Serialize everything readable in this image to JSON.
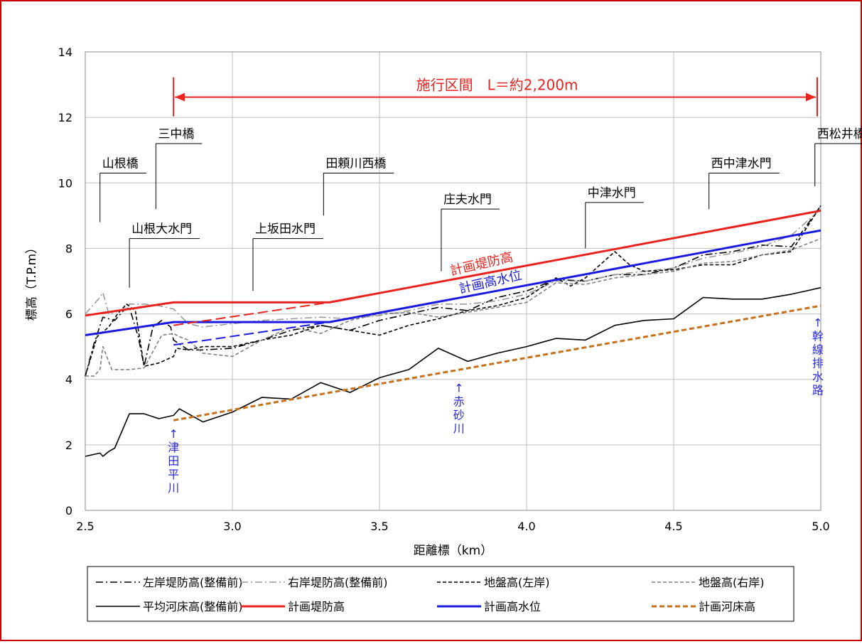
{
  "colors": {
    "frame": "#cc0000",
    "grid": "#bfbfbf",
    "planned_levee": "#e8231f",
    "planned_hwl": "#1a1adf",
    "planned_bed": "#c8701a",
    "annotation_blue": "#2a2ad8",
    "section_red": "#e8231f"
  },
  "chart_data": {
    "type": "line",
    "xlabel": "距離標（km）",
    "ylabel": "標高（T.P.m）",
    "xlim": [
      2.5,
      5.0
    ],
    "ylim": [
      0,
      14
    ],
    "x_ticks": [
      "2.5",
      "3.0",
      "3.5",
      "4.0",
      "4.5",
      "5.0"
    ],
    "y_ticks": [
      "0",
      "2",
      "4",
      "6",
      "8",
      "10",
      "12",
      "14"
    ],
    "grid": true,
    "legend_position": "bottom",
    "section": {
      "label": "施行区間　L＝約2,200m",
      "x_start": 2.8,
      "x_end": 5.0,
      "y": 12.9
    },
    "bridges": [
      {
        "label": "山根橋",
        "x": 2.55,
        "line_top": 10.3,
        "line_bottom": 8.8
      },
      {
        "label": "三中橋",
        "x": 2.74,
        "line_top": 11.2,
        "line_bottom": 9.2
      },
      {
        "label": "田頼川西橋",
        "x": 3.31,
        "line_top": 10.3,
        "line_bottom": 9.0
      },
      {
        "label": "西松井橋",
        "x": 4.98,
        "line_top": 11.2,
        "line_bottom": 9.9
      }
    ],
    "gates": [
      {
        "label": "山根大水門",
        "x": 2.65,
        "line_top": 8.3,
        "line_bottom": 6.8
      },
      {
        "label": "上坂田水門",
        "x": 3.07,
        "line_top": 8.3,
        "line_bottom": 6.7
      },
      {
        "label": "庄夫水門",
        "x": 3.71,
        "line_top": 9.2,
        "line_bottom": 7.3
      },
      {
        "label": "中津水門",
        "x": 4.2,
        "line_top": 9.4,
        "line_bottom": 8.0
      },
      {
        "label": "西中津水門",
        "x": 4.62,
        "line_top": 10.3,
        "line_bottom": 9.2
      }
    ],
    "inflows": [
      {
        "label": [
          "↑",
          "津",
          "田",
          "平",
          "川"
        ],
        "x": 2.8,
        "y_top": 2.6
      },
      {
        "label": [
          "↑",
          "赤",
          "砂",
          "川"
        ],
        "x": 3.77,
        "y_top": 4.0
      },
      {
        "label": [
          "↑",
          "幹",
          "線",
          "排",
          "水",
          "路"
        ],
        "x": 4.99,
        "y_top": 6.0
      }
    ],
    "curve_labels": [
      {
        "label": "計画堤防高",
        "x": 3.85,
        "y": 7.4,
        "angle": -13,
        "series": "計画堤防高"
      },
      {
        "label": "計画高水位",
        "x": 3.88,
        "y": 6.85,
        "angle": -13,
        "series": "計画高水位"
      }
    ],
    "series": [
      {
        "name": "左岸堤防高(整備前)",
        "color": "#000000",
        "dash": "10 4 2 4",
        "width": 1.6,
        "x": [
          2.5,
          2.53,
          2.56,
          2.6,
          2.63,
          2.65,
          2.68,
          2.7,
          2.73,
          2.76,
          2.79,
          2.8,
          2.85,
          2.9,
          3.0,
          3.1,
          3.2,
          3.3,
          3.4,
          3.5,
          3.6,
          3.7,
          3.8,
          3.9,
          4.0,
          4.1,
          4.2,
          4.3,
          4.4,
          4.5,
          4.6,
          4.7,
          4.8,
          4.9,
          5.0
        ],
        "y": [
          4.1,
          5.1,
          5.9,
          5.8,
          6.1,
          6.2,
          5.3,
          4.4,
          5.6,
          5.8,
          5.6,
          5.2,
          4.9,
          4.9,
          4.95,
          5.2,
          5.5,
          5.65,
          5.5,
          5.8,
          6.0,
          6.2,
          6.1,
          6.5,
          6.7,
          7.05,
          7.0,
          7.2,
          7.2,
          7.4,
          7.8,
          7.9,
          8.1,
          8.05,
          9.3
        ]
      },
      {
        "name": "右岸堤防高(整備前)",
        "color": "#999999",
        "dash": "10 4 2 4",
        "width": 1.6,
        "x": [
          2.5,
          2.53,
          2.55,
          2.56,
          2.58,
          2.62,
          2.65,
          2.7,
          2.75,
          2.8,
          2.85,
          2.9,
          3.0,
          3.1,
          3.2,
          3.3,
          3.4,
          3.5,
          3.6,
          3.7,
          3.8,
          3.9,
          4.0,
          4.1,
          4.2,
          4.3,
          4.4,
          4.5,
          4.6,
          4.7,
          4.8,
          4.9,
          5.0
        ],
        "y": [
          6.0,
          6.3,
          6.5,
          6.65,
          6.0,
          6.1,
          6.3,
          6.3,
          6.25,
          6.15,
          5.7,
          5.6,
          5.7,
          5.8,
          5.85,
          5.9,
          5.85,
          5.95,
          6.1,
          6.3,
          6.3,
          6.4,
          6.6,
          7.0,
          7.0,
          7.2,
          7.3,
          7.4,
          7.7,
          7.85,
          8.05,
          8.4,
          9.2
        ]
      },
      {
        "name": "地盤高(左岸)",
        "color": "#000000",
        "dash": "5 3",
        "width": 1.6,
        "x": [
          2.5,
          2.54,
          2.58,
          2.61,
          2.64,
          2.67,
          2.7,
          2.75,
          2.8,
          2.81,
          2.85,
          2.9,
          3.0,
          3.1,
          3.2,
          3.3,
          3.4,
          3.5,
          3.6,
          3.7,
          3.8,
          3.9,
          4.0,
          4.1,
          4.15,
          4.2,
          4.3,
          4.35,
          4.4,
          4.5,
          4.6,
          4.7,
          4.8,
          4.9,
          5.0
        ],
        "y": [
          4.1,
          5.3,
          5.6,
          6.0,
          6.3,
          6.1,
          4.4,
          4.5,
          4.7,
          4.95,
          4.9,
          5.0,
          5.0,
          5.2,
          5.35,
          5.65,
          5.5,
          5.35,
          5.65,
          5.85,
          6.1,
          6.25,
          6.5,
          7.1,
          6.85,
          7.1,
          7.9,
          7.5,
          7.3,
          7.35,
          7.5,
          7.5,
          7.8,
          7.9,
          9.3
        ]
      },
      {
        "name": "地盤高(右岸)",
        "color": "#808080",
        "dash": "5 3",
        "width": 1.6,
        "x": [
          2.5,
          2.53,
          2.55,
          2.56,
          2.59,
          2.65,
          2.7,
          2.76,
          2.8,
          2.82,
          2.85,
          2.9,
          3.0,
          3.1,
          3.2,
          3.3,
          3.4,
          3.5,
          3.6,
          3.7,
          3.8,
          3.9,
          4.0,
          4.1,
          4.2,
          4.3,
          4.4,
          4.5,
          4.6,
          4.7,
          4.8,
          4.9,
          5.0
        ],
        "y": [
          4.1,
          4.1,
          4.3,
          5.0,
          4.3,
          4.3,
          4.35,
          5.35,
          5.4,
          5.3,
          5.2,
          4.8,
          4.7,
          5.2,
          5.6,
          5.4,
          5.8,
          6.0,
          6.05,
          5.9,
          6.05,
          6.2,
          6.35,
          6.95,
          6.9,
          7.1,
          7.2,
          7.3,
          7.55,
          7.6,
          7.8,
          7.95,
          8.3
        ]
      },
      {
        "name": "平均河床高(整備前)",
        "color": "#000000",
        "dash": "",
        "width": 1.6,
        "x": [
          2.5,
          2.55,
          2.56,
          2.58,
          2.6,
          2.65,
          2.7,
          2.75,
          2.8,
          2.82,
          2.85,
          2.9,
          3.0,
          3.1,
          3.2,
          3.3,
          3.4,
          3.5,
          3.6,
          3.7,
          3.8,
          3.9,
          4.0,
          4.1,
          4.2,
          4.3,
          4.4,
          4.5,
          4.6,
          4.7,
          4.8,
          4.9,
          5.0
        ],
        "y": [
          1.65,
          1.75,
          1.65,
          1.8,
          1.9,
          2.95,
          2.95,
          2.8,
          2.9,
          3.1,
          2.95,
          2.7,
          3.0,
          3.45,
          3.4,
          3.9,
          3.6,
          4.05,
          4.3,
          4.95,
          4.55,
          4.8,
          5.0,
          5.25,
          5.2,
          5.65,
          5.8,
          5.85,
          6.5,
          6.45,
          6.45,
          6.6,
          6.8
        ]
      },
      {
        "name": "計画堤防高",
        "color": "#e8231f",
        "dash": "",
        "width": 3,
        "x": [
          2.5,
          2.8,
          3.33,
          5.0
        ],
        "y": [
          5.95,
          6.35,
          6.35,
          9.15
        ]
      },
      {
        "name": "計画高水位",
        "color": "#1a1adf",
        "dash": "",
        "width": 3,
        "x": [
          2.5,
          2.8,
          3.33,
          5.0
        ],
        "y": [
          5.35,
          5.75,
          5.75,
          8.55
        ]
      },
      {
        "name": "計画河床高",
        "color": "#c8701a",
        "dash": "7 4",
        "width": 3,
        "x": [
          2.8,
          5.0
        ],
        "y": [
          2.75,
          6.25
        ]
      }
    ],
    "extra_lines": [
      {
        "color": "#e8231f",
        "dash": "14 6",
        "width": 2,
        "x": [
          2.8,
          3.33
        ],
        "y": [
          5.65,
          6.35
        ]
      },
      {
        "color": "#1a1adf",
        "dash": "14 6",
        "width": 2,
        "x": [
          2.8,
          3.33
        ],
        "y": [
          5.05,
          5.75
        ]
      }
    ],
    "legend": [
      {
        "label": "左岸堤防高(整備前)",
        "color": "#000000",
        "dash": "10 4 2 4",
        "width": 1.6
      },
      {
        "label": "右岸堤防高(整備前)",
        "color": "#999999",
        "dash": "10 4 2 4",
        "width": 1.6
      },
      {
        "label": "地盤高(左岸)",
        "color": "#000000",
        "dash": "5 3",
        "width": 1.6
      },
      {
        "label": "地盤高(右岸)",
        "color": "#808080",
        "dash": "5 3",
        "width": 1.6
      },
      {
        "label": "平均河床高(整備前)",
        "color": "#000000",
        "dash": "",
        "width": 1.6
      },
      {
        "label": "計画堤防高",
        "color": "#e8231f",
        "dash": "",
        "width": 3
      },
      {
        "label": "計画高水位",
        "color": "#1a1adf",
        "dash": "",
        "width": 3
      },
      {
        "label": "計画河床高",
        "color": "#c8701a",
        "dash": "7 4",
        "width": 3
      }
    ]
  }
}
